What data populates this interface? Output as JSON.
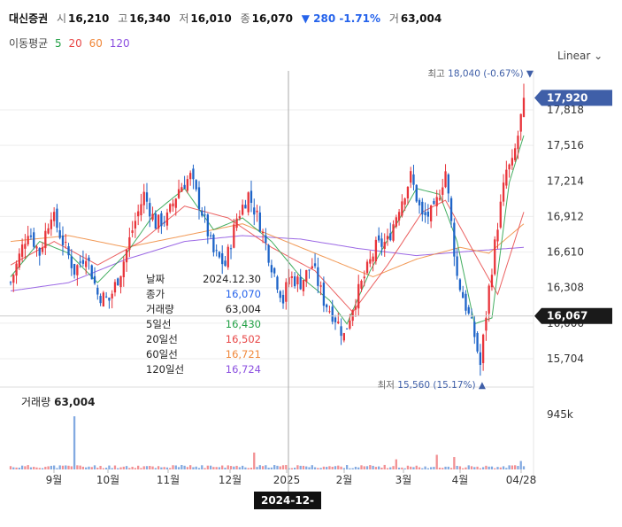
{
  "header": {
    "name": "대신증권",
    "open_label": "시",
    "open": "16,210",
    "high_label": "고",
    "high": "16,340",
    "low_label": "저",
    "low": "16,010",
    "close_label": "종",
    "close": "16,070",
    "change": "▼ 280 -1.71%",
    "volume_label": "거",
    "volume": "63,004"
  },
  "ma_legend": {
    "label": "이동평균",
    "items": [
      {
        "text": "5",
        "color": "#22a045"
      },
      {
        "text": "20",
        "color": "#e84646"
      },
      {
        "text": "60",
        "color": "#f0883a"
      },
      {
        "text": "120",
        "color": "#8b4fe0"
      }
    ]
  },
  "scale_mode": "Linear",
  "colors": {
    "up": "#e8343a",
    "down": "#1e64c8",
    "ma5": "#22a045",
    "ma20": "#e84646",
    "ma60": "#f0883a",
    "ma120": "#8b4fe0",
    "badge_blue": "#3f5fa8",
    "badge_dark": "#1a1a1a"
  },
  "tooltip": [
    {
      "k": "날짜",
      "v": "2024.12.30",
      "color": "#222222"
    },
    {
      "k": "종가",
      "v": "16,070",
      "color": "#2563eb"
    },
    {
      "k": "거래량",
      "v": "63,004",
      "color": "#222222"
    },
    {
      "k": "5일선",
      "v": "16,430",
      "color": "#22a045"
    },
    {
      "k": "20일선",
      "v": "16,502",
      "color": "#e84646"
    },
    {
      "k": "60일선",
      "v": "16,721",
      "color": "#f0883a"
    },
    {
      "k": "120일선",
      "v": "16,724",
      "color": "#8b4fe0"
    }
  ],
  "volume_panel": {
    "title": "거래량",
    "value": "63,004",
    "tick": "945k"
  },
  "crosshair_date": "2024-12-30",
  "chart_data": {
    "type": "candlestick",
    "y_ticks": [
      17818,
      17516,
      17214,
      16912,
      16610,
      16308,
      16006,
      15704
    ],
    "y_tick_labels": [
      "17,818",
      "17,516",
      "17,214",
      "16,912",
      "16,610",
      "16,308",
      "16,006",
      "15,704"
    ],
    "x_labels": [
      "9월",
      "10월",
      "11월",
      "12월",
      "2025",
      "2월",
      "3월",
      "4월",
      "04/28"
    ],
    "last_price": {
      "value": 17920,
      "label": "17,920"
    },
    "crosshair_price": {
      "value": 16067,
      "label": "16,067"
    },
    "max_marker": {
      "prefix": "최고",
      "value": 18040,
      "label": "18,040 (-0.67%) ▼"
    },
    "min_marker": {
      "prefix": "최저",
      "value": 15560,
      "label": "15,560 (15.17%) ▲"
    },
    "close_path": [
      [
        0,
        16350
      ],
      [
        6,
        16800
      ],
      [
        10,
        16600
      ],
      [
        14,
        16950
      ],
      [
        18,
        16700
      ],
      [
        22,
        16450
      ],
      [
        26,
        16600
      ],
      [
        30,
        16250
      ],
      [
        34,
        16200
      ],
      [
        38,
        16450
      ],
      [
        42,
        16800
      ],
      [
        46,
        17100
      ],
      [
        50,
        16850
      ],
      [
        54,
        16900
      ],
      [
        58,
        17150
      ],
      [
        62,
        17250
      ],
      [
        66,
        16950
      ],
      [
        70,
        16600
      ],
      [
        74,
        16500
      ],
      [
        78,
        16900
      ],
      [
        82,
        17100
      ],
      [
        86,
        16850
      ],
      [
        90,
        16500
      ],
      [
        94,
        16200
      ],
      [
        96,
        16400
      ],
      [
        100,
        16350
      ],
      [
        104,
        16500
      ],
      [
        108,
        16200
      ],
      [
        112,
        16050
      ],
      [
        115,
        15900
      ],
      [
        118,
        16150
      ],
      [
        122,
        16400
      ],
      [
        126,
        16650
      ],
      [
        130,
        16700
      ],
      [
        134,
        17000
      ],
      [
        138,
        17250
      ],
      [
        142,
        16900
      ],
      [
        146,
        16950
      ],
      [
        150,
        17300
      ],
      [
        154,
        16400
      ],
      [
        157,
        16150
      ],
      [
        160,
        15900
      ],
      [
        162,
        15650
      ],
      [
        165,
        16300
      ],
      [
        168,
        16850
      ],
      [
        171,
        17300
      ],
      [
        173,
        17350
      ],
      [
        175,
        17600
      ],
      [
        177,
        17900
      ]
    ],
    "ma5_path": [
      [
        0,
        16400
      ],
      [
        10,
        16700
      ],
      [
        20,
        16600
      ],
      [
        30,
        16350
      ],
      [
        40,
        16600
      ],
      [
        50,
        16950
      ],
      [
        60,
        17150
      ],
      [
        70,
        16800
      ],
      [
        80,
        16900
      ],
      [
        90,
        16700
      ],
      [
        100,
        16400
      ],
      [
        110,
        16200
      ],
      [
        116,
        16000
      ],
      [
        124,
        16450
      ],
      [
        132,
        16800
      ],
      [
        140,
        17150
      ],
      [
        148,
        17100
      ],
      [
        154,
        16700
      ],
      [
        160,
        16000
      ],
      [
        166,
        16050
      ],
      [
        172,
        17200
      ],
      [
        177,
        17600
      ]
    ],
    "ma20_path": [
      [
        0,
        16500
      ],
      [
        15,
        16700
      ],
      [
        30,
        16500
      ],
      [
        45,
        16700
      ],
      [
        60,
        17000
      ],
      [
        75,
        16900
      ],
      [
        90,
        16650
      ],
      [
        105,
        16450
      ],
      [
        118,
        16100
      ],
      [
        130,
        16500
      ],
      [
        142,
        16950
      ],
      [
        150,
        17050
      ],
      [
        160,
        16600
      ],
      [
        168,
        16250
      ],
      [
        177,
        16950
      ]
    ],
    "ma60_path": [
      [
        0,
        16700
      ],
      [
        20,
        16750
      ],
      [
        40,
        16650
      ],
      [
        60,
        16750
      ],
      [
        80,
        16850
      ],
      [
        95,
        16700
      ],
      [
        110,
        16550
      ],
      [
        125,
        16400
      ],
      [
        140,
        16550
      ],
      [
        155,
        16650
      ],
      [
        165,
        16600
      ],
      [
        177,
        16850
      ]
    ],
    "ma120_path": [
      [
        0,
        16280
      ],
      [
        20,
        16350
      ],
      [
        40,
        16550
      ],
      [
        60,
        16700
      ],
      [
        80,
        16750
      ],
      [
        100,
        16720
      ],
      [
        120,
        16640
      ],
      [
        140,
        16580
      ],
      [
        160,
        16620
      ],
      [
        177,
        16650
      ]
    ],
    "volume_spikes": [
      {
        "i": 22,
        "value": 945000
      },
      {
        "i": 84,
        "value": 300000
      },
      {
        "i": 133,
        "value": 180000
      },
      {
        "i": 147,
        "value": 260000
      },
      {
        "i": 153,
        "value": 220000
      },
      {
        "i": 176,
        "value": 150000
      }
    ],
    "volume_max": 1000000,
    "n_candles": 178
  }
}
